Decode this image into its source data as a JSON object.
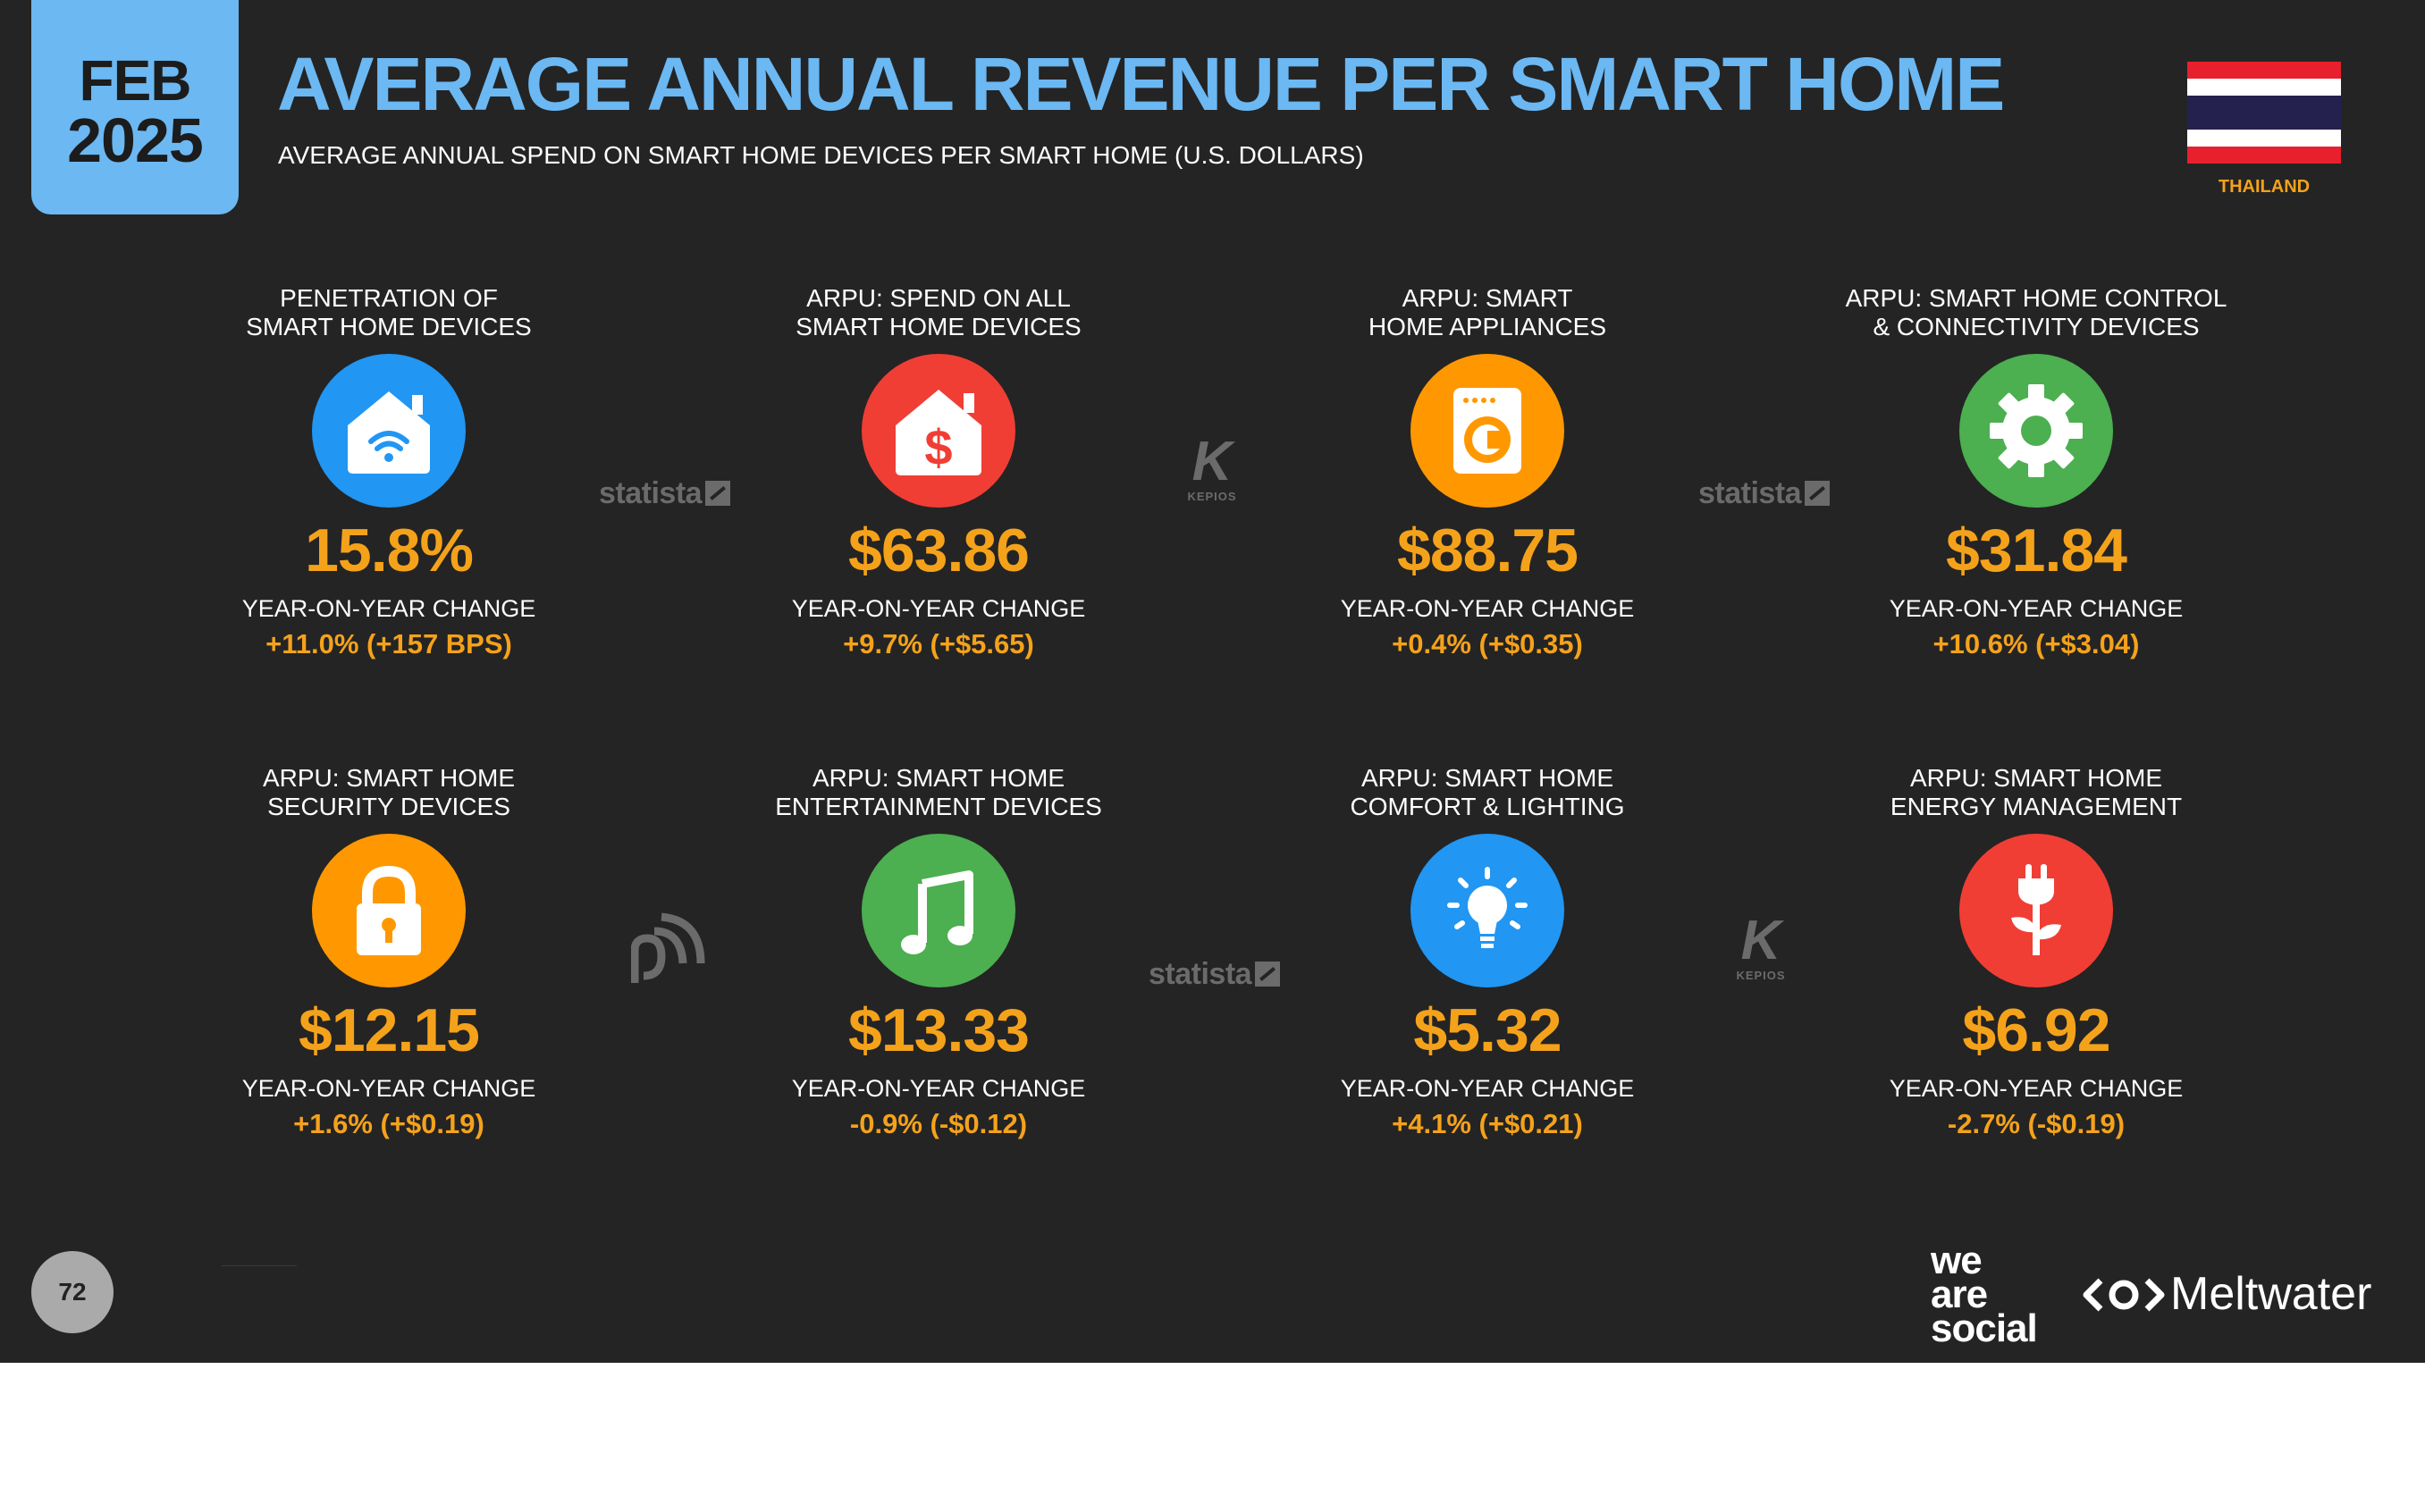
{
  "header": {
    "month": "FEB",
    "year": "2025",
    "title": "AVERAGE ANNUAL REVENUE PER SMART HOME",
    "subtitle": "AVERAGE ANNUAL SPEND ON SMART HOME DEVICES PER SMART HOME (U.S. DOLLARS)",
    "country": "THAILAND"
  },
  "colors": {
    "background": "#242424",
    "accent_blue": "#6bb8f3",
    "accent_orange": "#f5a21b",
    "icon_blue": "#2196f3",
    "icon_red": "#f03e35",
    "icon_orange": "#ff9800",
    "icon_green": "#4caf50"
  },
  "yoy_label": "YEAR-ON-YEAR CHANGE",
  "cards": [
    {
      "label1": "PENETRATION OF",
      "label2": "SMART HOME DEVICES",
      "icon": "smart-home-wifi-icon",
      "color": "#2196f3",
      "value": "15.8%",
      "yoy": "+11.0% (+157 BPS)"
    },
    {
      "label1": "ARPU: SPEND ON ALL",
      "label2": "SMART HOME DEVICES",
      "icon": "home-dollar-icon",
      "color": "#f03e35",
      "value": "$63.86",
      "yoy": "+9.7% (+$5.65)"
    },
    {
      "label1": "ARPU: SMART",
      "label2": "HOME APPLIANCES",
      "icon": "washing-machine-icon",
      "color": "#ff9800",
      "value": "$88.75",
      "yoy": "+0.4% (+$0.35)"
    },
    {
      "label1": "ARPU: SMART HOME CONTROL",
      "label2": "& CONNECTIVITY DEVICES",
      "icon": "gear-icon",
      "color": "#4caf50",
      "value": "$31.84",
      "yoy": "+10.6% (+$3.04)"
    },
    {
      "label1": "ARPU: SMART HOME",
      "label2": "SECURITY DEVICES",
      "icon": "padlock-icon",
      "color": "#ff9800",
      "value": "$12.15",
      "yoy": "+1.6% (+$0.19)"
    },
    {
      "label1": "ARPU: SMART HOME",
      "label2": "ENTERTAINMENT DEVICES",
      "icon": "music-note-icon",
      "color": "#4caf50",
      "value": "$13.33",
      "yoy": "-0.9% (-$0.12)"
    },
    {
      "label1": "ARPU: SMART HOME",
      "label2": "COMFORT & LIGHTING",
      "icon": "light-bulb-icon",
      "color": "#2196f3",
      "value": "$5.32",
      "yoy": "+4.1% (+$0.21)"
    },
    {
      "label1": "ARPU: SMART HOME",
      "label2": "ENERGY MANAGEMENT",
      "icon": "plug-leaf-icon",
      "color": "#f03e35",
      "value": "$6.92",
      "yoy": "-2.7% (-$0.19)"
    }
  ],
  "sources": {
    "statista": "statista",
    "kepios_letter": "K",
    "kepios": "KEPIOS"
  },
  "footer": {
    "page_number": "72",
    "we": "we",
    "are": "are",
    "social": "social",
    "meltwater": "Meltwater"
  }
}
